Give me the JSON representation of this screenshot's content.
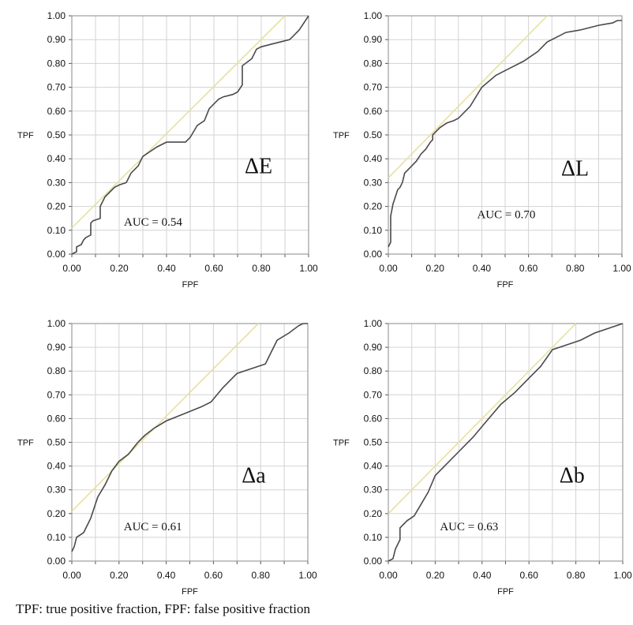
{
  "caption": "TPF: true positive fraction, FPF: false positive fraction",
  "colors": {
    "roc_line": "#4a4a4a",
    "reference_line": "#e8e0a0",
    "grid": "#d3d3d3"
  },
  "chart_data": [
    {
      "type": "line",
      "label": "ΔE",
      "annotation": "AUC = 0.54",
      "xlabel": "FPF",
      "ylabel": "TPF",
      "xlim": [
        0,
        1
      ],
      "ylim": [
        0,
        1
      ],
      "x_ticks": [
        "0.00",
        "0.20",
        "0.40",
        "0.60",
        "0.80",
        "1.00"
      ],
      "y_ticks": [
        "0.00",
        "0.10",
        "0.20",
        "0.30",
        "0.40",
        "0.50",
        "0.60",
        "0.70",
        "0.80",
        "0.90",
        "1.00"
      ],
      "grid": true,
      "roc": {
        "x": [
          0,
          0.02,
          0.02,
          0.04,
          0.05,
          0.06,
          0.08,
          0.08,
          0.09,
          0.12,
          0.12,
          0.14,
          0.16,
          0.18,
          0.2,
          0.23,
          0.25,
          0.28,
          0.3,
          0.33,
          0.36,
          0.4,
          0.44,
          0.48,
          0.5,
          0.53,
          0.56,
          0.58,
          0.6,
          0.62,
          0.64,
          0.68,
          0.7,
          0.72,
          0.72,
          0.76,
          0.78,
          0.8,
          0.84,
          0.88,
          0.92,
          0.94,
          0.96,
          0.98,
          1.0
        ],
        "y": [
          0,
          0.01,
          0.03,
          0.04,
          0.06,
          0.07,
          0.08,
          0.13,
          0.14,
          0.15,
          0.2,
          0.24,
          0.26,
          0.28,
          0.29,
          0.3,
          0.34,
          0.37,
          0.41,
          0.43,
          0.45,
          0.47,
          0.47,
          0.47,
          0.49,
          0.54,
          0.56,
          0.61,
          0.63,
          0.65,
          0.66,
          0.67,
          0.68,
          0.71,
          0.79,
          0.82,
          0.86,
          0.87,
          0.88,
          0.89,
          0.9,
          0.92,
          0.94,
          0.97,
          1.0
        ]
      },
      "reference_line": {
        "x": [
          0,
          0.9
        ],
        "y": [
          0.11,
          1.0
        ]
      }
    },
    {
      "type": "line",
      "label": "ΔL",
      "annotation": "AUC = 0.70",
      "xlabel": "FPF",
      "ylabel": "TPF",
      "xlim": [
        0,
        1
      ],
      "ylim": [
        0,
        1
      ],
      "x_ticks": [
        "0.00",
        "0.20",
        "0.40",
        "0.60",
        "0.80",
        "1.00"
      ],
      "y_ticks": [
        "0.00",
        "0.10",
        "0.20",
        "0.30",
        "0.40",
        "0.50",
        "0.60",
        "0.70",
        "0.80",
        "0.90",
        "1.00"
      ],
      "grid": true,
      "roc": {
        "x": [
          0.0,
          0.01,
          0.01,
          0.02,
          0.03,
          0.04,
          0.05,
          0.06,
          0.07,
          0.08,
          0.1,
          0.12,
          0.14,
          0.16,
          0.18,
          0.19,
          0.19,
          0.22,
          0.25,
          0.28,
          0.3,
          0.35,
          0.4,
          0.46,
          0.52,
          0.58,
          0.64,
          0.68,
          0.72,
          0.76,
          0.82,
          0.9,
          0.96,
          0.98,
          1.0
        ],
        "y": [
          0.03,
          0.05,
          0.16,
          0.21,
          0.24,
          0.27,
          0.28,
          0.3,
          0.34,
          0.35,
          0.37,
          0.39,
          0.42,
          0.44,
          0.47,
          0.48,
          0.5,
          0.53,
          0.55,
          0.56,
          0.57,
          0.62,
          0.7,
          0.75,
          0.78,
          0.81,
          0.85,
          0.89,
          0.91,
          0.93,
          0.94,
          0.96,
          0.97,
          0.98,
          0.98
        ]
      },
      "reference_line": {
        "x": [
          0,
          0.68
        ],
        "y": [
          0.32,
          1.0
        ]
      }
    },
    {
      "type": "line",
      "label": "Δa",
      "annotation": "AUC = 0.61",
      "xlabel": "FPF",
      "ylabel": "TPF",
      "xlim": [
        0,
        1
      ],
      "ylim": [
        0,
        1
      ],
      "x_ticks": [
        "0.00",
        "0.20",
        "0.40",
        "0.60",
        "0.80",
        "1.00"
      ],
      "y_ticks": [
        "0.00",
        "0.10",
        "0.20",
        "0.30",
        "0.40",
        "0.50",
        "0.60",
        "0.70",
        "0.80",
        "0.90",
        "1.00"
      ],
      "grid": true,
      "roc": {
        "x": [
          0.0,
          0.01,
          0.02,
          0.05,
          0.08,
          0.11,
          0.14,
          0.17,
          0.2,
          0.24,
          0.28,
          0.31,
          0.35,
          0.4,
          0.45,
          0.5,
          0.55,
          0.59,
          0.64,
          0.7,
          0.76,
          0.82,
          0.87,
          0.92,
          0.96,
          0.98,
          1.0
        ],
        "y": [
          0.04,
          0.06,
          0.1,
          0.12,
          0.18,
          0.27,
          0.32,
          0.38,
          0.42,
          0.45,
          0.5,
          0.53,
          0.56,
          0.59,
          0.61,
          0.63,
          0.65,
          0.67,
          0.73,
          0.79,
          0.81,
          0.83,
          0.93,
          0.96,
          0.99,
          1.0,
          1.0
        ]
      },
      "reference_line": {
        "x": [
          0,
          0.79
        ],
        "y": [
          0.21,
          1.0
        ]
      }
    },
    {
      "type": "line",
      "label": "Δb",
      "annotation": "AUC = 0.63",
      "xlabel": "FPF",
      "ylabel": "TPF",
      "xlim": [
        0,
        1
      ],
      "ylim": [
        0,
        1
      ],
      "x_ticks": [
        "0.00",
        "0.20",
        "0.40",
        "0.60",
        "0.80",
        "1.00"
      ],
      "y_ticks": [
        "0.00",
        "0.10",
        "0.20",
        "0.30",
        "0.40",
        "0.50",
        "0.60",
        "0.70",
        "0.80",
        "0.90",
        "1.00"
      ],
      "grid": true,
      "roc": {
        "x": [
          0.0,
          0.02,
          0.03,
          0.05,
          0.05,
          0.08,
          0.11,
          0.14,
          0.17,
          0.2,
          0.24,
          0.3,
          0.36,
          0.42,
          0.48,
          0.54,
          0.6,
          0.65,
          0.7,
          0.76,
          0.82,
          0.88,
          0.94,
          0.97,
          1.0
        ],
        "y": [
          0.0,
          0.01,
          0.05,
          0.09,
          0.14,
          0.17,
          0.19,
          0.24,
          0.29,
          0.36,
          0.4,
          0.46,
          0.52,
          0.59,
          0.66,
          0.71,
          0.77,
          0.82,
          0.89,
          0.91,
          0.93,
          0.96,
          0.98,
          0.99,
          1.0
        ]
      },
      "reference_line": {
        "x": [
          0,
          0.8
        ],
        "y": [
          0.2,
          1.0
        ]
      }
    }
  ]
}
